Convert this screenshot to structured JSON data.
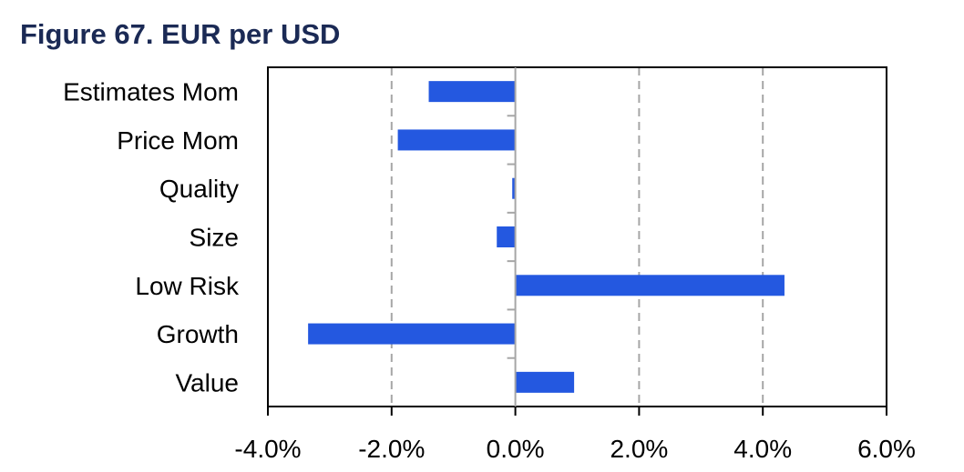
{
  "title": "Figure 67. EUR per USD",
  "chart_data": {
    "type": "bar",
    "orientation": "horizontal",
    "title": "Figure 67. EUR per USD",
    "categories": [
      "Estimates Mom",
      "Price Mom",
      "Quality",
      "Size",
      "Low Risk",
      "Growth",
      "Value"
    ],
    "values": [
      -1.4,
      -1.9,
      -0.05,
      -0.3,
      4.35,
      -3.35,
      0.95
    ],
    "unit": "%",
    "xlim": [
      -4.0,
      6.0
    ],
    "xticks": [
      -4.0,
      -2.0,
      0.0,
      2.0,
      4.0,
      6.0
    ],
    "xtick_labels": [
      "-4.0%",
      "-2.0%",
      "0.0%",
      "2.0%",
      "4.0%",
      "6.0%"
    ],
    "xlabel": "",
    "ylabel": "",
    "grid": "vertical dashed",
    "legend": "none",
    "bar_color": "#2458e0",
    "grid_color": "#a6a6a6"
  }
}
